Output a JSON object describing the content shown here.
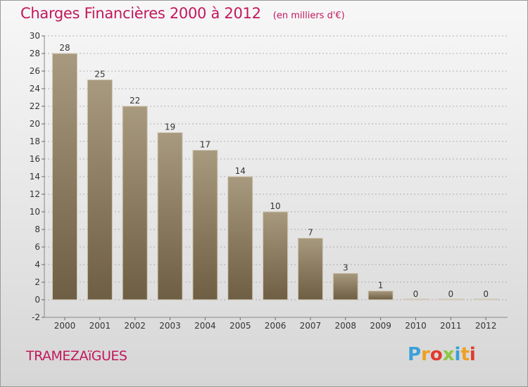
{
  "title": "Charges Financières 2000 à 2012",
  "subtitle": "(en milliers d'€)",
  "commune": "TRAMEZAïGUES",
  "brand": {
    "text": "Proxiti",
    "letter_colors": [
      "#3aa0d8",
      "#f0a020",
      "#e23a2e",
      "#8cc63f",
      "#3aa0d8",
      "#f0a020",
      "#e23a2e"
    ]
  },
  "colors": {
    "bar_top": "#a89a7e",
    "bar_bottom": "#6e5e44",
    "label": "#333333",
    "grid": "#9a9a9a"
  },
  "chart_data": {
    "type": "bar",
    "categories": [
      "2000",
      "2001",
      "2002",
      "2003",
      "2004",
      "2005",
      "2006",
      "2007",
      "2008",
      "2009",
      "2010",
      "2011",
      "2012"
    ],
    "values": [
      28,
      25,
      22,
      19,
      17,
      14,
      10,
      7,
      3,
      1,
      0,
      0,
      0
    ],
    "ylim": [
      -2,
      30
    ],
    "yticks": [
      -2,
      0,
      2,
      4,
      6,
      8,
      10,
      12,
      14,
      16,
      18,
      20,
      22,
      24,
      26,
      28,
      30
    ],
    "grid": "horizontal dashed",
    "legend": "none"
  }
}
